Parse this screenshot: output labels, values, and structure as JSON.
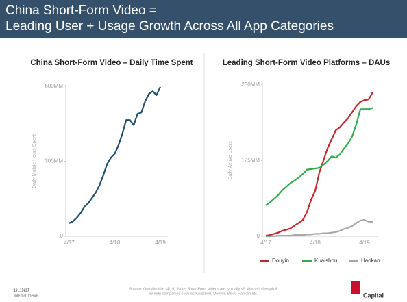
{
  "header": {
    "title_line1": "China Short-Form Video =",
    "title_line2": "Leading User + Usage Growth Across All App Categories"
  },
  "chart_data": [
    {
      "type": "line",
      "title": "China Short-Form Video – Daily Time Spent",
      "y_label": "Daily Mobile Hours Spent",
      "categories": [
        "4/17",
        null,
        null,
        null,
        null,
        null,
        null,
        null,
        null,
        null,
        null,
        null,
        "4/18",
        null,
        null,
        null,
        null,
        null,
        null,
        null,
        null,
        null,
        null,
        null,
        "4/19"
      ],
      "values": [
        52,
        60,
        74,
        93,
        118,
        132,
        153,
        175,
        205,
        245,
        290,
        315,
        330,
        365,
        410,
        465,
        465,
        445,
        490,
        495,
        540,
        570,
        580,
        565,
        598
      ],
      "color": "#1f4e6e",
      "ylim": [
        0,
        600
      ],
      "yticks": [
        0,
        {
          "value": 300,
          "label": "300MM"
        },
        {
          "value": 600,
          "label": "600MM"
        }
      ],
      "grid": false
    },
    {
      "type": "line",
      "title": "Leading Short-Form Video Platforms – DAUs",
      "y_label": "Daily Active Users",
      "categories": [
        "4/17",
        null,
        null,
        null,
        null,
        null,
        null,
        null,
        null,
        null,
        null,
        null,
        "4/18",
        null,
        null,
        null,
        null,
        null,
        null,
        null,
        null,
        null,
        null,
        null,
        "4/19",
        null,
        null
      ],
      "series": [
        {
          "name": "Douyin",
          "color": "#c0262b",
          "values": [
            1,
            2,
            4,
            6,
            9,
            11,
            13,
            18,
            22,
            27,
            40,
            60,
            75,
            105,
            125,
            145,
            160,
            175,
            180,
            188,
            195,
            205,
            215,
            222,
            225,
            226,
            238
          ]
        },
        {
          "name": "Kuaishou",
          "color": "#2eae4a",
          "values": [
            51,
            56,
            62,
            68,
            76,
            82,
            88,
            92,
            97,
            103,
            110,
            111,
            112,
            113,
            118,
            124,
            132,
            130,
            135,
            145,
            153,
            165,
            185,
            210,
            210,
            210,
            212
          ]
        },
        {
          "name": "Haokan",
          "color": "#a6a6a6",
          "values": [
            0,
            0,
            0,
            1,
            1,
            1,
            1,
            2,
            2,
            2,
            3,
            3,
            4,
            4,
            5,
            5,
            6,
            7,
            9,
            12,
            14,
            17,
            22,
            26,
            27,
            24,
            24
          ]
        }
      ],
      "ylim": [
        0,
        250
      ],
      "yticks": [
        0,
        {
          "value": 125,
          "label": "125MM"
        },
        {
          "value": 250,
          "label": "250MM"
        }
      ],
      "grid": false,
      "legend": "bottom"
    }
  ],
  "footer": {
    "source_line1": "Source: QuestMobile (4/19). Note: Short-Form Videos are typically <5 Minute in Length &",
    "source_line2": "include companies such as Kuaishou, Douyin, Baidu Haokan,etc.",
    "brand": "BOND",
    "brand_subtitle": "Internet Trends",
    "logo": "Capital"
  }
}
